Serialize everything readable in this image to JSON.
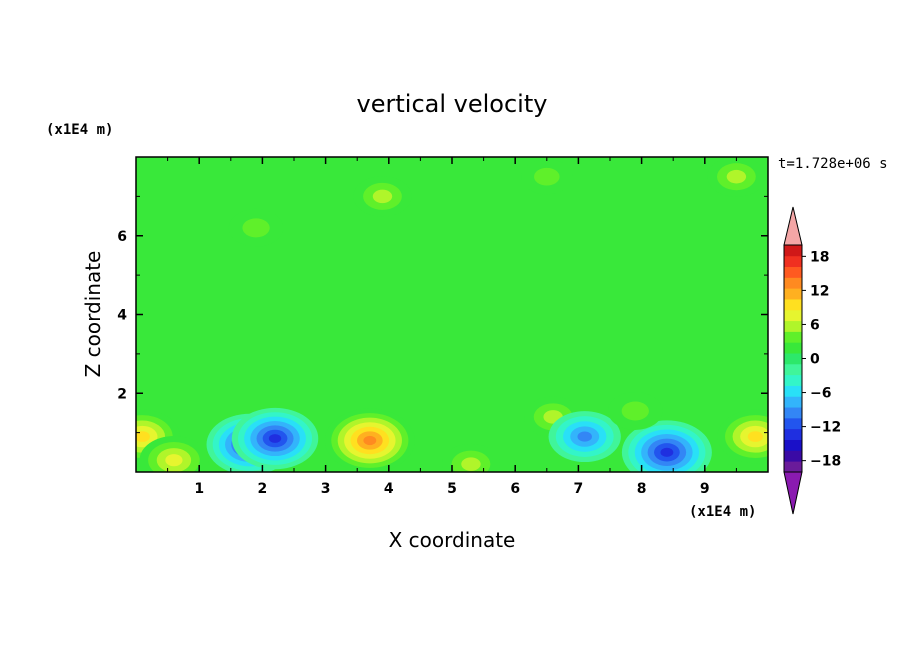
{
  "chart_data": {
    "type": "heatmap",
    "title": "vertical velocity",
    "xlabel": "X coordinate",
    "ylabel": "Z coordinate",
    "x_unit": "(x1E4 m)",
    "y_unit": "(x1E4 m)",
    "time_label": "t=1.728e+06 s",
    "xlim": [
      0,
      10
    ],
    "ylim": [
      0,
      8
    ],
    "x_ticks": [
      1,
      2,
      3,
      4,
      5,
      6,
      7,
      8,
      9
    ],
    "y_ticks": [
      2,
      4,
      6
    ],
    "colorbar": {
      "range": [
        -20,
        20
      ],
      "step": 2,
      "tick_values": [
        18,
        12,
        6,
        0,
        -6,
        -12,
        -18
      ],
      "tick_labels": [
        "18",
        "12",
        "6",
        "0",
        "−6",
        "−12",
        "−18"
      ],
      "extend": "both",
      "colors": [
        "#6a1b9a",
        "#3a0aa5",
        "#1a10c8",
        "#1f2fe0",
        "#2255ee",
        "#3386f5",
        "#33b4fb",
        "#29e0f7",
        "#33f5c8",
        "#40f59a",
        "#2de86a",
        "#39e83a",
        "#5ff02a",
        "#b0f52a",
        "#e6f52f",
        "#ffe020",
        "#ffb020",
        "#ff8a20",
        "#ff5a20",
        "#f03020",
        "#d01818"
      ],
      "over_color": "#f4a6a6",
      "under_color": "#8a1ab0"
    },
    "features": [
      {
        "x": 0.1,
        "z": 0.9,
        "value": 10,
        "kind": "updraft"
      },
      {
        "x": 0.6,
        "z": 0.3,
        "value": 8,
        "kind": "updraft"
      },
      {
        "x": 1.8,
        "z": 0.7,
        "value": -13,
        "kind": "downdraft"
      },
      {
        "x": 2.2,
        "z": 0.85,
        "value": -13,
        "kind": "downdraft"
      },
      {
        "x": 3.7,
        "z": 0.8,
        "value": 14,
        "kind": "updraft"
      },
      {
        "x": 5.3,
        "z": 0.2,
        "value": 5,
        "kind": "updraft"
      },
      {
        "x": 6.6,
        "z": 1.4,
        "value": 5,
        "kind": "updraft"
      },
      {
        "x": 7.1,
        "z": 0.9,
        "value": -9,
        "kind": "downdraft"
      },
      {
        "x": 8.4,
        "z": 0.5,
        "value": -14,
        "kind": "downdraft"
      },
      {
        "x": 9.8,
        "z": 0.9,
        "value": 10,
        "kind": "updraft"
      },
      {
        "x": 7.9,
        "z": 1.55,
        "value": 4,
        "kind": "updraft"
      },
      {
        "x": 3.9,
        "z": 7.0,
        "value": 5,
        "kind": "updraft"
      },
      {
        "x": 9.5,
        "z": 7.5,
        "value": 5,
        "kind": "updraft"
      },
      {
        "x": 1.9,
        "z": 6.2,
        "value": 4,
        "kind": "updraft"
      },
      {
        "x": 6.5,
        "z": 7.5,
        "value": 3,
        "kind": "updraft"
      }
    ]
  }
}
